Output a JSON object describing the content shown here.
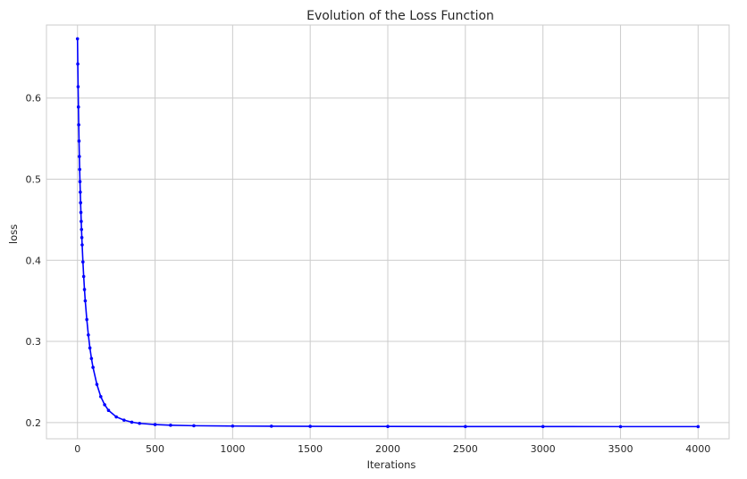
{
  "chart_data": {
    "type": "line",
    "title": "Evolution of the Loss Function",
    "xlabel": "Iterations",
    "ylabel": "loss",
    "xlim": [
      -200,
      4200
    ],
    "ylim": [
      0.18,
      0.69
    ],
    "xticks": [
      0,
      500,
      1000,
      1500,
      2000,
      2500,
      3000,
      3500,
      4000
    ],
    "xtick_labels": [
      "0",
      "500",
      "1000",
      "1500",
      "2000",
      "2500",
      "3000",
      "3500",
      "4000"
    ],
    "yticks": [
      0.2,
      0.3,
      0.4,
      0.5,
      0.6
    ],
    "ytick_labels": [
      "0.2",
      "0.3",
      "0.4",
      "0.5",
      "0.6"
    ],
    "grid": true,
    "line_color": "#0000ff",
    "marker": "dot",
    "series": [
      {
        "x": [
          0,
          2,
          4,
          6,
          8,
          10,
          12,
          14,
          16,
          18,
          20,
          22,
          24,
          26,
          28,
          30,
          35,
          40,
          45,
          50,
          60,
          70,
          80,
          90,
          100,
          125,
          150,
          175,
          200,
          250,
          300,
          350,
          400,
          500,
          600,
          750,
          1000,
          1250,
          1500,
          2000,
          2500,
          3000,
          3500,
          4000
        ],
        "y": [
          0.673,
          0.642,
          0.614,
          0.589,
          0.567,
          0.547,
          0.528,
          0.512,
          0.497,
          0.484,
          0.471,
          0.459,
          0.448,
          0.438,
          0.428,
          0.419,
          0.398,
          0.38,
          0.364,
          0.35,
          0.327,
          0.308,
          0.292,
          0.279,
          0.268,
          0.247,
          0.232,
          0.222,
          0.215,
          0.207,
          0.203,
          0.2005,
          0.199,
          0.1975,
          0.1967,
          0.1961,
          0.1957,
          0.1955,
          0.1953,
          0.1952,
          0.1951,
          0.1951,
          0.195,
          0.195
        ]
      }
    ]
  }
}
